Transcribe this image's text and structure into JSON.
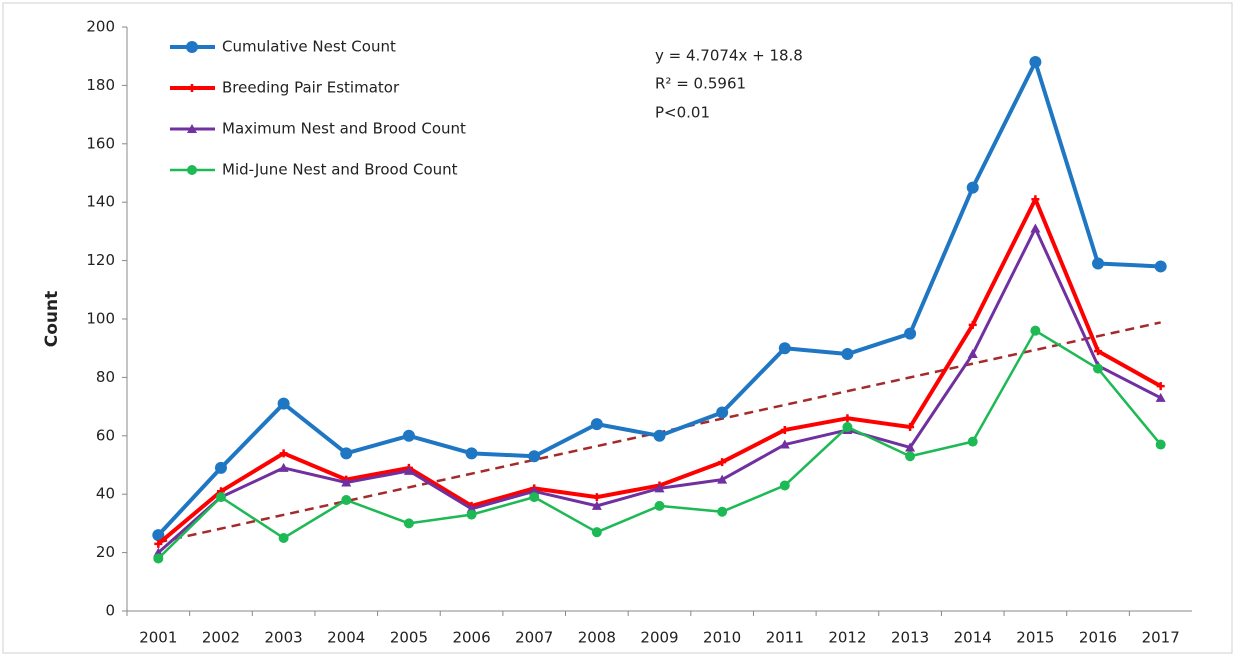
{
  "chart_data": {
    "type": "line",
    "y_label": "Count",
    "categories": [
      "2001",
      "2002",
      "2003",
      "2004",
      "2005",
      "2006",
      "2007",
      "2008",
      "2009",
      "2010",
      "2011",
      "2012",
      "2013",
      "2014",
      "2015",
      "2016",
      "2017"
    ],
    "series": [
      {
        "name": "Cumulative Nest Count",
        "color": "#1f77c4",
        "marker": "circle",
        "values": [
          26,
          49,
          71,
          54,
          60,
          54,
          53,
          64,
          60,
          68,
          90,
          88,
          95,
          145,
          188,
          119,
          118
        ]
      },
      {
        "name": "Breeding Pair Estimator",
        "color": "#ff0000",
        "marker": "star",
        "values": [
          23,
          41,
          54,
          45,
          49,
          36,
          42,
          39,
          43,
          51,
          62,
          66,
          63,
          98,
          141,
          89,
          77
        ]
      },
      {
        "name": "Maximum Nest and Brood Count",
        "color": "#7030a0",
        "marker": "triangle",
        "values": [
          20,
          39,
          49,
          44,
          48,
          35,
          41,
          36,
          42,
          45,
          57,
          62,
          56,
          88,
          131,
          84,
          73
        ]
      },
      {
        "name": "Mid-June Nest and Brood Count",
        "color": "#1db954",
        "marker": "dot",
        "values": [
          18,
          39,
          25,
          38,
          30,
          33,
          39,
          27,
          36,
          34,
          43,
          63,
          53,
          58,
          96,
          83,
          57
        ]
      }
    ],
    "trendline": {
      "slope": 4.7074,
      "intercept": 18.8,
      "color": "#a52a2a"
    },
    "annotations": [
      "y = 4.7074x + 18.8",
      "R² = 0.5961",
      "P<0.01"
    ],
    "ylim": [
      0,
      200
    ],
    "yticks": [
      0,
      20,
      40,
      60,
      80,
      100,
      120,
      140,
      160,
      180,
      200
    ],
    "legend": "upper left"
  }
}
